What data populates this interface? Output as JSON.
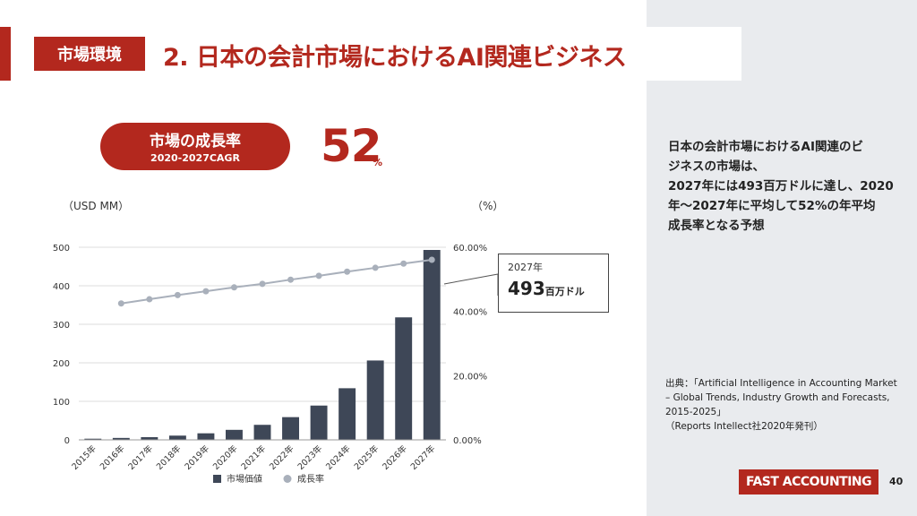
{
  "header": {
    "tag": "市場環境",
    "title": "2. 日本の会計市場におけるAI関連ビジネス"
  },
  "kpi": {
    "label": "市場の成長率",
    "sublabel": "2020-2027CAGR",
    "value": "52",
    "unit": "%"
  },
  "chart_units": {
    "left": "（USD MM）",
    "right": "（%）"
  },
  "callout": {
    "year": "2027年",
    "value": "493",
    "unit": "百万ドル"
  },
  "description": [
    "日本の会計市場におけるAI関連のビ",
    "ジネスの市場は、",
    "2027年には493百万ドルに達し、2020",
    "年～2027年に平均して52%の年平均",
    "成長率となる予想"
  ],
  "source": [
    "出典：「Artificial Intelligence in Accounting Market",
    "– Global Trends, Industry Growth and Forecasts,",
    "2015-2025」",
    "（Reports Intellect社2020年発刊）"
  ],
  "footer": {
    "logo": "FAST ACCOUNTING",
    "page": "40"
  },
  "colors": {
    "accent": "#b3281e",
    "bar": "#3e4757",
    "line": "#a9b0bb",
    "panel": "#e9ebee"
  },
  "chart_data": {
    "type": "bar",
    "categories": [
      "2015年",
      "2016年",
      "2017年",
      "2018年",
      "2019年",
      "2020年",
      "2021年",
      "2022年",
      "2023年",
      "2024年",
      "2025年",
      "2026年",
      "2027年"
    ],
    "series": [
      {
        "name": "市場価値",
        "type": "bar",
        "axis": "left",
        "values": [
          3,
          5,
          7,
          11,
          17,
          26,
          39,
          59,
          89,
          134,
          206,
          318,
          493
        ]
      },
      {
        "name": "成長率",
        "type": "line",
        "axis": "right",
        "values": [
          null,
          42.5,
          43.8,
          45.1,
          46.3,
          47.5,
          48.6,
          49.9,
          51.1,
          52.4,
          53.6,
          54.9,
          56.1
        ]
      }
    ],
    "ylim": [
      0,
      500
    ],
    "yticks": [
      "0",
      "100",
      "200",
      "300",
      "400",
      "500"
    ],
    "y2lim": [
      0,
      60
    ],
    "y2ticks": [
      "0.00%",
      "20.00%",
      "40.00%",
      "60.00%"
    ],
    "legend": "bottom",
    "grid": true
  }
}
